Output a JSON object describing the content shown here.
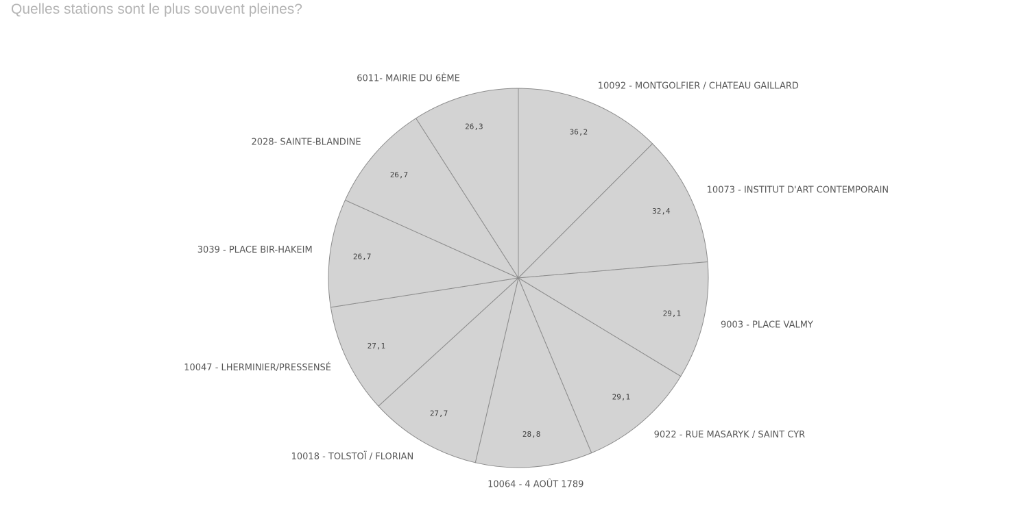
{
  "chart_data": {
    "type": "pie",
    "title": "Quelles stations sont le plus souvent pleines?",
    "categories": [
      "10092 - MONTGOLFIER / CHATEAU GAILLARD",
      "10073 - INSTITUT D'ART CONTEMPORAIN",
      "9003 - PLACE VALMY",
      "9022 - RUE MASARYK / SAINT CYR",
      "10064 - 4 AOÛT 1789",
      "10018 - TOLSTOÏ / FLORIAN",
      "10047 - LHERMINIER/PRESSENSÉ",
      "3039 - PLACE BIR-HAKEIM",
      "2028- SAINTE-BLANDINE",
      "6011- MAIRIE DU 6ÈME"
    ],
    "values": [
      36.2,
      32.4,
      29.1,
      29.1,
      28.8,
      27.7,
      27.1,
      26.7,
      26.7,
      26.3
    ],
    "value_labels": [
      "36,2",
      "32,4",
      "29,1",
      "29,1",
      "28,8",
      "27,7",
      "27,1",
      "26,7",
      "26,7",
      "26,3"
    ],
    "legend": "none",
    "colors": {
      "slice_fill": "#d3d3d3",
      "slice_stroke": "#8c8c8c",
      "title": "#b4b4b4",
      "label": "#595959",
      "value": "#404040"
    }
  }
}
